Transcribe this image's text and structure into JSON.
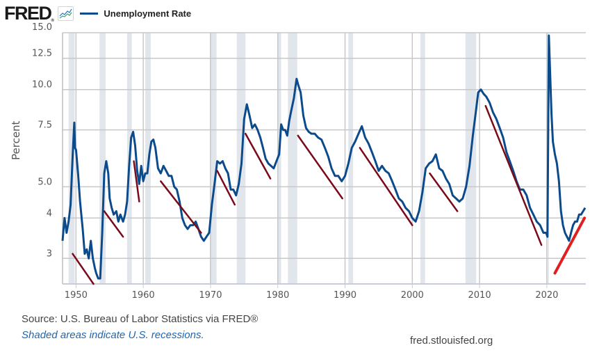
{
  "header": {
    "logo_text": "FRED",
    "logo_mark": "®",
    "icon": "line-graph-icon",
    "legend_label": "Unemployment Rate"
  },
  "footer": {
    "source": "Source: U.S. Bureau of Labor Statistics via FRED®",
    "note": "Shaded areas indicate U.S. recessions.",
    "url": "fred.stlouisfed.org"
  },
  "colors": {
    "series": "#0b4a8b",
    "trend_lines": "#7a0a1a",
    "trend_line_current": "#e02020",
    "recession_shade": "#e1e6ec",
    "grid": "#c8c8c8"
  },
  "chart_data": {
    "type": "line",
    "title": "Unemployment Rate",
    "xlabel": "",
    "ylabel": "Percent",
    "yscale": "log",
    "ylim": [
      2.5,
      15
    ],
    "xlim": [
      1948,
      2025.8
    ],
    "grid": true,
    "legend": "top-left",
    "yticks": [
      3,
      4,
      5.0,
      7.5,
      10.0,
      12.5,
      15.0
    ],
    "ytick_labels": [
      "3",
      "4",
      "5.0",
      "7.5",
      "10.0",
      "12.5",
      "15.0"
    ],
    "xticks": [
      1950,
      1960,
      1970,
      1980,
      1990,
      2000,
      2010,
      2020
    ],
    "xtick_labels": [
      "1950",
      "1960",
      "1970",
      "1980",
      "1990",
      "2000",
      "2010",
      "2020"
    ],
    "series": [
      {
        "name": "Unemployment Rate",
        "x": [
          1948.0,
          1948.3,
          1948.6,
          1948.9,
          1949.2,
          1949.5,
          1949.75,
          1949.85,
          1950.0,
          1950.3,
          1950.6,
          1951.0,
          1951.3,
          1951.6,
          1951.9,
          1952.2,
          1952.5,
          1952.8,
          1953.0,
          1953.3,
          1953.6,
          1953.9,
          1954.2,
          1954.5,
          1954.8,
          1955.0,
          1955.3,
          1955.6,
          1956.0,
          1956.3,
          1956.6,
          1957.0,
          1957.3,
          1957.6,
          1957.9,
          1958.2,
          1958.5,
          1958.8,
          1959.1,
          1959.4,
          1959.7,
          1960.0,
          1960.3,
          1960.6,
          1960.9,
          1961.2,
          1961.5,
          1961.8,
          1962.2,
          1962.6,
          1963.0,
          1963.4,
          1963.8,
          1964.2,
          1964.6,
          1965.0,
          1965.4,
          1965.8,
          1966.2,
          1966.6,
          1967.0,
          1967.4,
          1967.8,
          1968.2,
          1968.6,
          1969.0,
          1969.4,
          1969.8,
          1970.2,
          1970.6,
          1971.0,
          1971.4,
          1971.8,
          1972.2,
          1972.6,
          1973.0,
          1973.4,
          1973.8,
          1974.2,
          1974.6,
          1975.0,
          1975.4,
          1975.8,
          1976.2,
          1976.6,
          1977.0,
          1977.4,
          1977.8,
          1978.2,
          1978.6,
          1979.0,
          1979.4,
          1979.8,
          1980.2,
          1980.5,
          1980.8,
          1981.1,
          1981.4,
          1981.7,
          1982.0,
          1982.4,
          1982.8,
          1983.0,
          1983.4,
          1983.8,
          1984.2,
          1984.6,
          1985.0,
          1985.5,
          1986.0,
          1986.5,
          1987.0,
          1987.5,
          1988.0,
          1988.5,
          1989.0,
          1989.5,
          1990.0,
          1990.5,
          1991.0,
          1991.5,
          1992.0,
          1992.5,
          1993.0,
          1993.5,
          1994.0,
          1994.5,
          1995.0,
          1995.5,
          1996.0,
          1996.5,
          1997.0,
          1997.5,
          1998.0,
          1998.5,
          1999.0,
          1999.5,
          2000.0,
          2000.5,
          2001.0,
          2001.5,
          2002.0,
          2002.5,
          2003.0,
          2003.5,
          2004.0,
          2004.5,
          2005.0,
          2005.5,
          2006.0,
          2006.5,
          2007.0,
          2007.5,
          2008.0,
          2008.5,
          2009.0,
          2009.5,
          2009.8,
          2010.2,
          2010.6,
          2011.0,
          2011.5,
          2012.0,
          2012.5,
          2013.0,
          2013.5,
          2014.0,
          2014.5,
          2015.0,
          2015.5,
          2016.0,
          2016.5,
          2017.0,
          2017.5,
          2018.0,
          2018.5,
          2019.0,
          2019.5,
          2019.9,
          2020.1,
          2020.3,
          2020.5,
          2020.7,
          2020.9,
          2021.2,
          2021.5,
          2021.8,
          2022.1,
          2022.4,
          2022.7,
          2023.0,
          2023.3,
          2023.6,
          2023.9,
          2024.2,
          2024.5,
          2024.8,
          2025.1,
          2025.4,
          2025.7
        ],
        "values": [
          3.4,
          4.0,
          3.6,
          3.9,
          4.4,
          6.2,
          7.9,
          6.6,
          6.5,
          5.5,
          4.5,
          3.7,
          3.1,
          3.2,
          3.0,
          3.4,
          3.0,
          2.8,
          2.7,
          2.6,
          2.6,
          3.6,
          5.5,
          6.0,
          5.5,
          4.6,
          4.3,
          4.1,
          4.2,
          3.9,
          4.1,
          3.9,
          4.1,
          4.5,
          5.8,
          7.1,
          7.4,
          6.7,
          5.6,
          5.1,
          5.8,
          5.2,
          5.5,
          5.5,
          6.3,
          6.9,
          7.0,
          6.6,
          5.7,
          5.5,
          5.8,
          5.6,
          5.4,
          5.4,
          5.0,
          4.9,
          4.5,
          4.0,
          3.8,
          3.7,
          3.8,
          3.8,
          3.9,
          3.7,
          3.5,
          3.4,
          3.5,
          3.6,
          4.4,
          5.1,
          6.0,
          5.9,
          6.0,
          5.7,
          5.5,
          4.9,
          4.9,
          4.7,
          5.1,
          5.9,
          8.1,
          9.0,
          8.3,
          7.6,
          7.8,
          7.5,
          7.1,
          6.6,
          6.1,
          5.9,
          5.8,
          5.7,
          6.0,
          6.3,
          7.8,
          7.5,
          7.5,
          7.2,
          8.0,
          8.6,
          9.4,
          10.8,
          10.4,
          9.8,
          8.3,
          7.6,
          7.4,
          7.3,
          7.3,
          7.1,
          7.0,
          6.6,
          6.2,
          5.7,
          5.4,
          5.4,
          5.2,
          5.4,
          5.9,
          6.6,
          6.9,
          7.3,
          7.7,
          7.1,
          6.8,
          6.4,
          6.0,
          5.6,
          5.8,
          5.6,
          5.5,
          5.2,
          4.9,
          4.6,
          4.5,
          4.3,
          4.2,
          4.0,
          3.9,
          4.2,
          4.8,
          5.7,
          5.9,
          6.0,
          6.3,
          5.7,
          5.6,
          5.3,
          5.1,
          4.7,
          4.6,
          4.5,
          4.6,
          5.0,
          5.8,
          7.2,
          8.7,
          9.8,
          10.0,
          9.7,
          9.5,
          9.1,
          8.5,
          8.1,
          7.6,
          7.1,
          6.4,
          6.0,
          5.6,
          5.2,
          4.9,
          4.9,
          4.7,
          4.3,
          4.1,
          3.9,
          3.8,
          3.6,
          3.6,
          3.5,
          14.7,
          11.1,
          8.4,
          6.9,
          6.3,
          5.9,
          5.2,
          4.2,
          3.8,
          3.6,
          3.5,
          3.4,
          3.6,
          3.8,
          3.9,
          3.9,
          4.1,
          4.1,
          4.2,
          4.3
        ]
      }
    ],
    "recessions": [
      [
        1948.9,
        1949.8
      ],
      [
        1953.5,
        1954.4
      ],
      [
        1957.6,
        1958.3
      ],
      [
        1960.3,
        1961.1
      ],
      [
        1969.9,
        1970.9
      ],
      [
        1973.9,
        1975.2
      ],
      [
        1980.0,
        1980.5
      ],
      [
        1981.5,
        1982.9
      ],
      [
        1990.5,
        1991.2
      ],
      [
        2001.2,
        2001.9
      ],
      [
        2007.9,
        2009.5
      ],
      [
        2020.1,
        2020.3
      ]
    ],
    "annotations": {
      "trend_lines": [
        {
          "start": [
            1949.5,
            3.1
          ],
          "end": [
            1952.6,
            2.5
          ],
          "color": "dark-red"
        },
        {
          "start": [
            1954.2,
            4.2
          ],
          "end": [
            1957.0,
            3.5
          ],
          "color": "dark-red"
        },
        {
          "start": [
            1958.6,
            6.0
          ],
          "end": [
            1959.4,
            4.5
          ],
          "color": "dark-red"
        },
        {
          "start": [
            1962.6,
            5.2
          ],
          "end": [
            1968.6,
            3.6
          ],
          "color": "dark-red"
        },
        {
          "start": [
            1971.0,
            5.6
          ],
          "end": [
            1973.6,
            4.4
          ],
          "color": "dark-red"
        },
        {
          "start": [
            1975.2,
            7.3
          ],
          "end": [
            1978.9,
            5.3
          ],
          "color": "dark-red"
        },
        {
          "start": [
            1983.0,
            7.2
          ],
          "end": [
            1989.6,
            4.6
          ],
          "color": "dark-red"
        },
        {
          "start": [
            1992.2,
            6.6
          ],
          "end": [
            2000.0,
            3.8
          ],
          "color": "dark-red"
        },
        {
          "start": [
            2002.6,
            5.5
          ],
          "end": [
            2006.7,
            4.2
          ],
          "color": "dark-red"
        },
        {
          "start": [
            2010.9,
            8.9
          ],
          "end": [
            2019.2,
            3.3
          ],
          "color": "dark-red"
        },
        {
          "start": [
            2021.2,
            2.7
          ],
          "end": [
            2025.6,
            4.0
          ],
          "color": "bright-red"
        }
      ]
    }
  }
}
